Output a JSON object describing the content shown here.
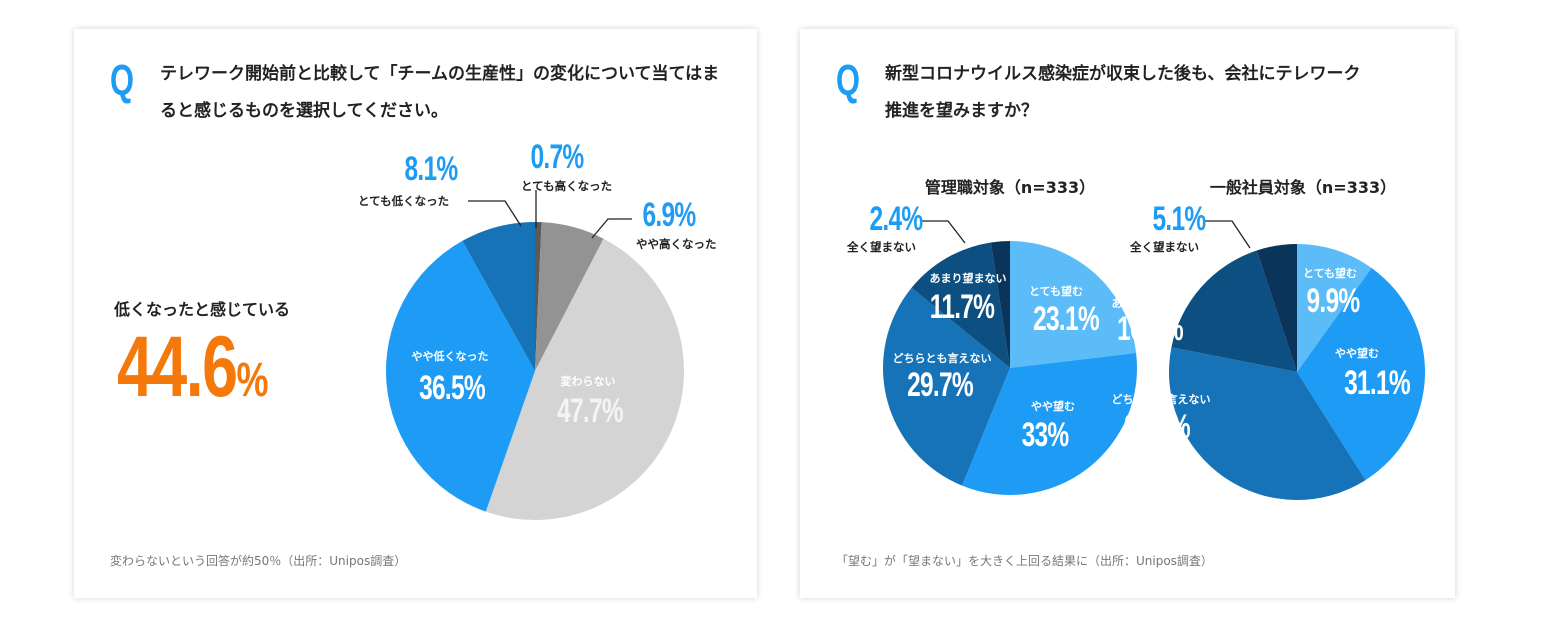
{
  "chart_data": [
    {
      "type": "pie",
      "title": "テレワーク開始前と比較して「チームの生産性」の変化について当てはまると感じるものを選択してください。",
      "q_mark": "Q",
      "categories": [
        "とても高くなった",
        "やや高くなった",
        "変わらない",
        "やや低くなった",
        "とても低くなった"
      ],
      "values": [
        0.7,
        6.9,
        47.7,
        36.5,
        8.1
      ],
      "labels": [
        "0.7%",
        "6.9%",
        "47.7%",
        "36.5%",
        "8.1%"
      ],
      "colors": [
        "#5a5a5a",
        "#939393",
        "#d4d4d4",
        "#1e9cf5",
        "#1673b7"
      ],
      "callout": {
        "text": "低くなったと感じている",
        "value": "44.6",
        "unit": "%",
        "color": "#f5780a"
      },
      "footnote": "変わらないという回答が約50％（出所：Unipos調査）"
    },
    {
      "type": "pie",
      "title_line1": "新型コロナウイルス感染症が収束した後も、会社にテレワーク",
      "title_line2": "推進を望みますか？",
      "q_mark": "Q",
      "subtitle": "管理職対象（n=333）",
      "categories": [
        "とても望む",
        "やや望む",
        "どちらとも言えない",
        "あまり望まない",
        "全く望まない"
      ],
      "values": [
        23.1,
        33,
        29.7,
        11.7,
        2.4
      ],
      "labels": [
        "23.1%",
        "33%",
        "29.7%",
        "11.7%",
        "2.4%"
      ],
      "colors": [
        "#5bbcf8",
        "#1e9cf5",
        "#1673b7",
        "#0d4f80",
        "#0a345a"
      ]
    },
    {
      "type": "pie",
      "subtitle": "一般社員対象（n=333）",
      "categories": [
        "とても望む",
        "やや望む",
        "どちらとも言えない",
        "あまり望まない",
        "全く望まない"
      ],
      "values": [
        9.9,
        31.1,
        37.1,
        16.8,
        5.1
      ],
      "labels": [
        "9.9%",
        "31.1%",
        "37.1%",
        "16.8%",
        "5.1%"
      ],
      "colors": [
        "#5bbcf8",
        "#1e9cf5",
        "#1673b7",
        "#0d4f80",
        "#0a345a"
      ],
      "footnote": "「望む」が「望まない」を大きく上回る結果に（出所：Unipos調査）"
    }
  ]
}
